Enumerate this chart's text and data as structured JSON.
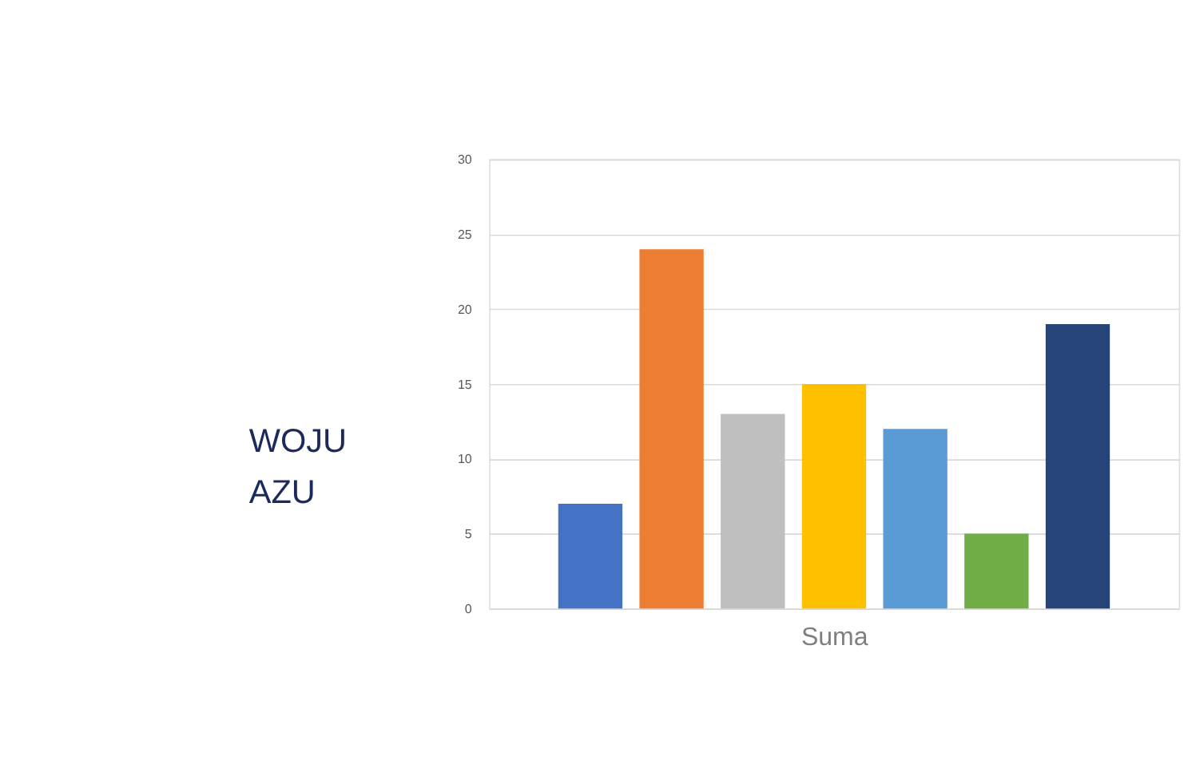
{
  "chart_data": {
    "type": "bar",
    "categories": [
      null,
      null,
      null,
      null,
      null,
      null,
      null
    ],
    "values": [
      7,
      24,
      13,
      15,
      12,
      5,
      19
    ],
    "colors": [
      "#4472c4",
      "#ed7d31",
      "#bfbfbf",
      "#ffc000",
      "#5b9bd5",
      "#70ad47",
      "#264478"
    ],
    "xlabel": "Suma",
    "ylim": [
      0,
      30
    ],
    "yticks": [
      0,
      5,
      10,
      15,
      20,
      25,
      30
    ],
    "grid": "y",
    "legend": false,
    "tick_labels": "y",
    "annotations": [
      "WOJU",
      "AZU"
    ]
  }
}
